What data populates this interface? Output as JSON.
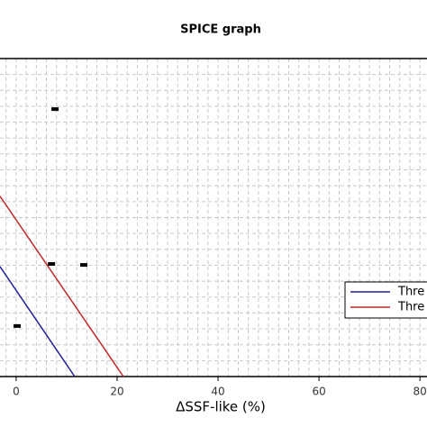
{
  "chart_data": {
    "type": "line",
    "title": "SPICE graph",
    "xlabel": "ΔSSF-like (%)",
    "xlim": [
      -3.2,
      81.4
    ],
    "ylim": [
      0,
      100
    ],
    "xticks": [
      0,
      20,
      40,
      60,
      80
    ],
    "xgrid": [
      -2,
      2,
      4,
      6,
      8,
      10,
      12,
      14,
      16,
      18,
      22,
      24,
      26,
      28,
      30,
      32,
      34,
      36,
      38,
      42,
      44,
      46,
      48,
      50,
      52,
      54,
      56,
      58,
      62,
      64,
      66,
      68,
      70,
      72,
      74,
      76,
      78
    ],
    "ygrid": [
      5,
      10,
      15,
      20,
      25,
      30,
      35,
      40,
      45,
      50,
      55,
      60,
      65,
      70,
      75,
      80,
      85,
      90,
      95
    ],
    "grid": true,
    "series": [
      {
        "name": "Thre",
        "color": "#1f1f9a",
        "x": [
          -3.2,
          11.6
        ],
        "values": [
          34.6,
          0
        ]
      },
      {
        "name": "Thre",
        "color": "#c0282a",
        "x": [
          -3.2,
          21.25
        ],
        "values": [
          56.7,
          0
        ]
      }
    ],
    "points": {
      "color": "#000000",
      "x": [
        7.7,
        7.0,
        13.4,
        0.2
      ],
      "y": [
        84.1,
        35.4,
        35.1,
        15.9
      ]
    },
    "legend": "right"
  }
}
